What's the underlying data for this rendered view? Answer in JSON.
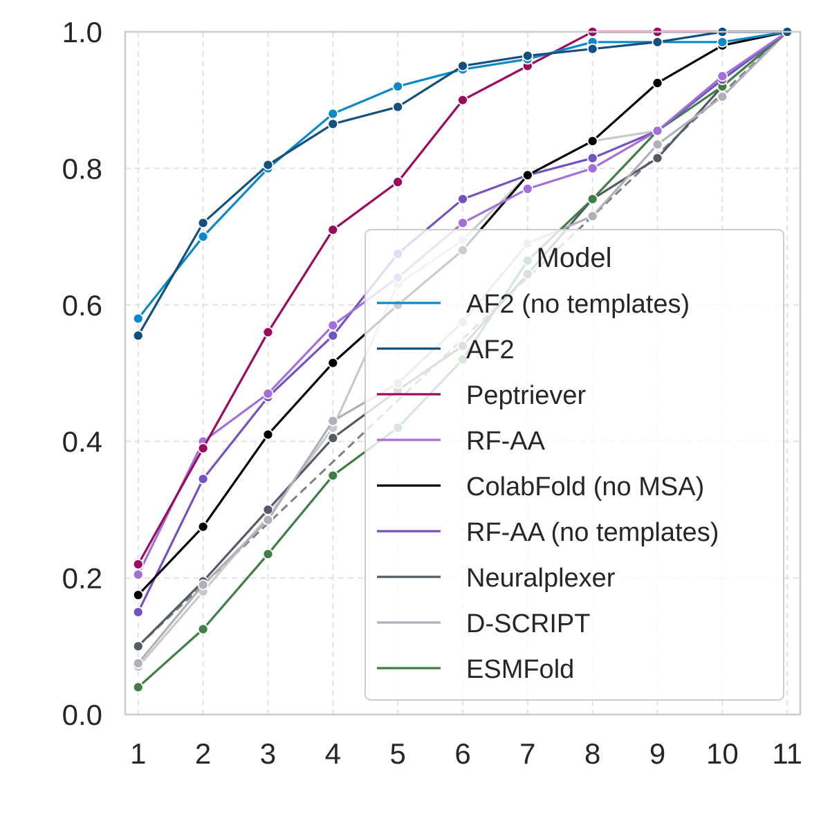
{
  "chart_data": {
    "type": "line",
    "x": [
      1,
      2,
      3,
      4,
      5,
      6,
      7,
      8,
      9,
      10,
      11
    ],
    "xlim": [
      0.8,
      11.2
    ],
    "ylim": [
      0.0,
      1.0
    ],
    "x_ticks": [
      "1",
      "2",
      "3",
      "4",
      "5",
      "6",
      "7",
      "8",
      "9",
      "10",
      "11"
    ],
    "y_ticks": [
      "0.0",
      "0.2",
      "0.4",
      "0.6",
      "0.8",
      "1.0"
    ],
    "y_tick_values": [
      0.0,
      0.2,
      0.4,
      0.6,
      0.8,
      1.0
    ],
    "grid": true,
    "legend": {
      "title": "Model",
      "placement": "center-right"
    },
    "baseline": {
      "values": [
        0.1,
        0.19,
        0.28,
        0.37,
        0.46,
        0.55,
        0.64,
        0.73,
        0.82,
        0.91,
        1.0
      ],
      "color": "#808080",
      "dashed": true
    },
    "series": [
      {
        "name": "AF2 (no templates)",
        "color": "#0a88c9",
        "values": [
          0.58,
          0.7,
          0.8,
          0.88,
          0.92,
          0.945,
          0.96,
          0.985,
          0.985,
          0.985,
          1.0
        ]
      },
      {
        "name": "AF2",
        "color": "#13507e",
        "values": [
          0.555,
          0.72,
          0.805,
          0.865,
          0.89,
          0.95,
          0.965,
          0.975,
          0.985,
          1.0,
          1.0
        ]
      },
      {
        "name": "Peptriever",
        "color": "#9c0a5e",
        "values": [
          0.22,
          0.39,
          0.56,
          0.71,
          0.78,
          0.9,
          0.95,
          1.0,
          1.0,
          1.0,
          1.0
        ]
      },
      {
        "name": "RF-AA",
        "color": "#a370d8",
        "values": [
          0.205,
          0.4,
          0.47,
          0.57,
          0.64,
          0.72,
          0.77,
          0.8,
          0.855,
          0.935,
          1.0
        ]
      },
      {
        "name": "ColabFold (no MSA)",
        "color": "#000000",
        "values": [
          0.175,
          0.275,
          0.41,
          0.515,
          0.6,
          0.68,
          0.79,
          0.84,
          0.925,
          0.98,
          1.0
        ]
      },
      {
        "name": "RF-AA (no templates)",
        "color": "#7352c2",
        "values": [
          0.15,
          0.345,
          0.465,
          0.555,
          0.675,
          0.755,
          0.79,
          0.815,
          0.855,
          0.93,
          1.0
        ]
      },
      {
        "name": "Neuralplexer",
        "color": "#555b66",
        "values": [
          0.1,
          0.195,
          0.3,
          0.405,
          0.475,
          0.54,
          0.645,
          0.755,
          0.815,
          0.92,
          1.0
        ]
      },
      {
        "name": "D-SCRIPT",
        "color": "#b0b0ba",
        "values": [
          0.075,
          0.19,
          0.285,
          0.43,
          0.485,
          0.575,
          0.69,
          0.73,
          0.835,
          0.905,
          1.0
        ]
      },
      {
        "name": "ESMFold",
        "color": "#3f7f45",
        "values": [
          0.04,
          0.125,
          0.235,
          0.35,
          0.42,
          0.52,
          0.665,
          0.755,
          0.855,
          0.92,
          1.0
        ]
      }
    ],
    "extra_series": [
      {
        "color": "#c9c9c9",
        "values": [
          0.07,
          0.18,
          0.29,
          0.42,
          0.63,
          0.695,
          0.79,
          0.84,
          0.855,
          0.93,
          1.0
        ]
      }
    ]
  }
}
